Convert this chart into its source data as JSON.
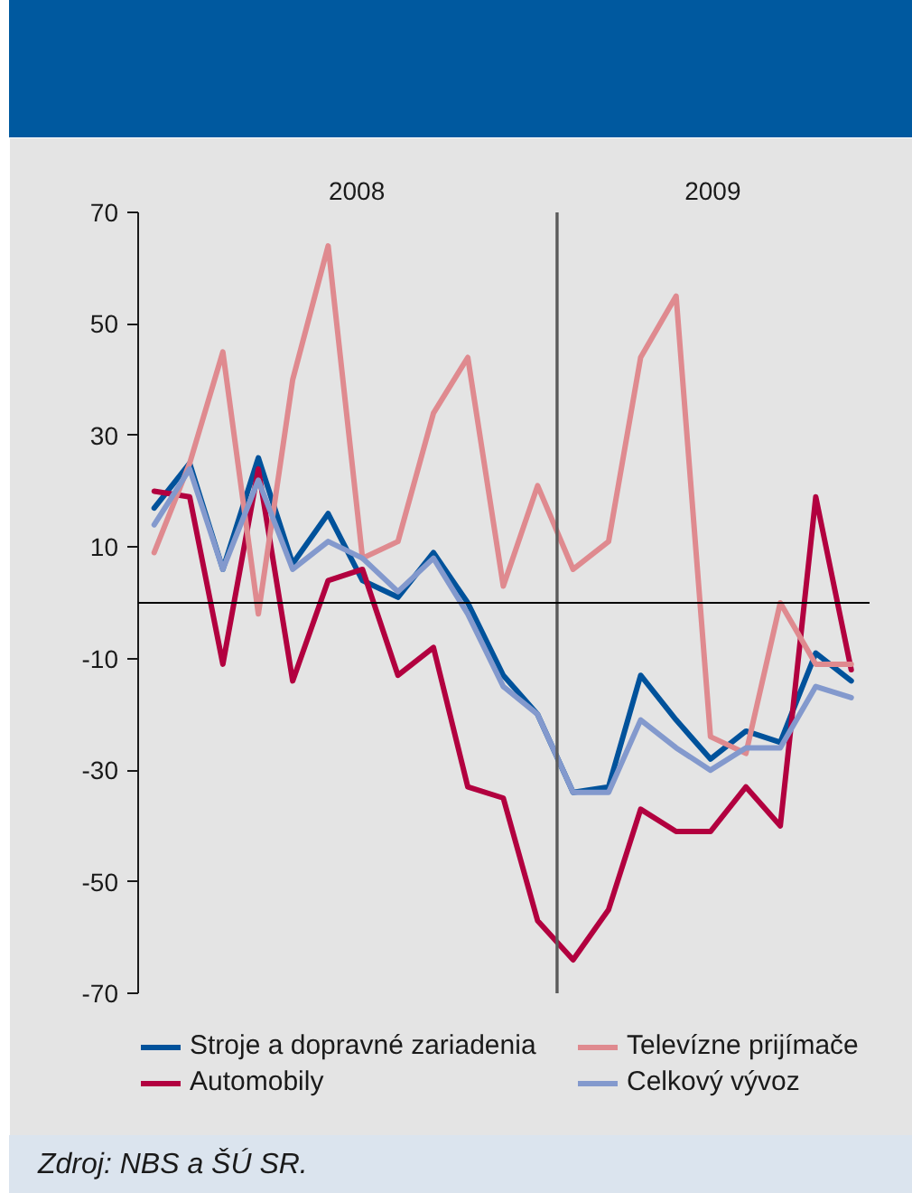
{
  "chart_data": {
    "type": "line",
    "x": [
      "2008-01-15",
      "2008-02-15",
      "2008-03-15",
      "2008-04-15",
      "2008-05-15",
      "2008-06-15",
      "2008-07-15",
      "2008-08-15",
      "2008-09-15",
      "2008-10-15",
      "2008-11-15",
      "2008-12-15",
      "2009-01-15",
      "2009-02-15",
      "2009-03-15",
      "2009-04-15",
      "2009-05-15",
      "2009-06-15",
      "2009-07-15",
      "2009-08-15",
      "2009-09-15"
    ],
    "xlim": [
      "2008-01-01",
      "2009-10-01"
    ],
    "xticks": [
      {
        "value": "2008-07-10",
        "label": "2008"
      },
      {
        "value": "2009-05-17",
        "label": "2009"
      }
    ],
    "ylim": [
      -70,
      70
    ],
    "yticks": [
      70,
      50,
      30,
      10,
      -10,
      -30,
      -50,
      -70
    ],
    "series": [
      {
        "name": "Stroje a dopravné zariadenia",
        "color": "#00529b",
        "values": [
          17,
          25,
          6,
          26,
          7,
          16,
          4,
          1,
          9,
          0,
          -13,
          -20,
          -34,
          -33,
          -13,
          -21,
          -28,
          -23,
          -25,
          -9,
          -14
        ]
      },
      {
        "name": "Automobily",
        "color": "#b2003f",
        "values": [
          20,
          19,
          -11,
          24,
          -14,
          4,
          6,
          -13,
          -8,
          -33,
          -35,
          -57,
          -64,
          -55,
          -37,
          -41,
          -41,
          -33,
          -40,
          19,
          -12
        ]
      },
      {
        "name": "Televízne prijímače",
        "color": "#df8a8f",
        "values": [
          9,
          25,
          45,
          -2,
          40,
          64,
          8,
          11,
          34,
          44,
          3,
          21,
          6,
          11,
          44,
          55,
          -24,
          -27,
          0,
          -11,
          -11
        ]
      },
      {
        "name": "Celkový vývoz",
        "color": "#8399cd",
        "values": [
          14,
          24,
          6,
          22,
          6,
          11,
          8,
          2,
          8,
          -2,
          -15,
          -20,
          -34,
          -34,
          -21,
          -26,
          -30,
          -26,
          -26,
          -15,
          -17
        ]
      }
    ],
    "ref_lines": [
      {
        "axis": "x",
        "value": "2009-01-01",
        "color": "#5a5a5a"
      },
      {
        "axis": "y",
        "value": 0,
        "color": "#000000"
      }
    ],
    "grid": false,
    "legend": "bottom",
    "line_style": "solid",
    "annotations": [
      "Zdroj: NBS a ŠÚ SR."
    ]
  }
}
